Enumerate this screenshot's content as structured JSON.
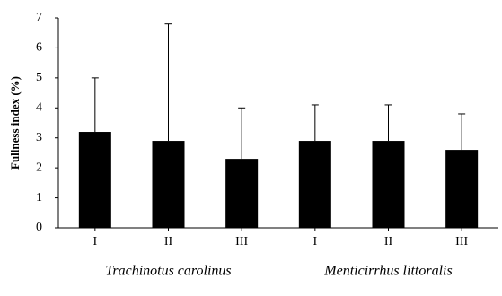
{
  "chart_data": {
    "type": "bar",
    "ylabel": "Fullness index (%)",
    "categories": [
      "I",
      "II",
      "III",
      "I",
      "II",
      "III"
    ],
    "group_labels": [
      "Trachinotus carolinus",
      "Menticirrhus littoralis"
    ],
    "values": [
      3.2,
      2.9,
      2.3,
      2.9,
      2.9,
      2.6
    ],
    "errors": [
      1.8,
      3.9,
      1.7,
      1.2,
      1.2,
      1.2
    ],
    "color": "#000000",
    "ylim": [
      0,
      7
    ],
    "yticks": [
      0,
      1,
      2,
      3,
      4,
      5,
      6,
      7
    ],
    "grid": false
  }
}
